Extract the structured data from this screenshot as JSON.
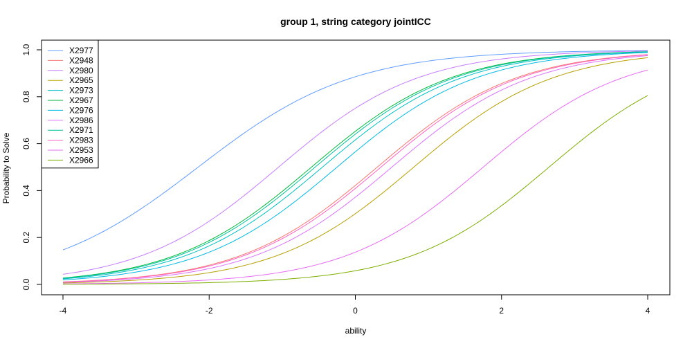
{
  "chart_data": {
    "type": "line",
    "title": "group 1, string category jointICC",
    "xlabel": "ability",
    "ylabel": "Probability to Solve",
    "xlim": [
      -4,
      4
    ],
    "ylim": [
      0,
      1
    ],
    "x_ticks": [
      -4,
      -2,
      0,
      2,
      4
    ],
    "y_ticks": [
      0.0,
      0.2,
      0.4,
      0.6,
      0.8,
      1.0
    ],
    "y_tick_labels": [
      "0.0",
      "0.2",
      "0.4",
      "0.6",
      "0.8",
      "1.0"
    ],
    "grid": false,
    "legend_position": "top-left",
    "series": [
      {
        "name": "X2977",
        "color": "#619CFF",
        "difficulty": -2.15,
        "discrimination": 0.95
      },
      {
        "name": "X2948",
        "color": "#F8766D",
        "difficulty": 0.3,
        "discrimination": 1.05
      },
      {
        "name": "X2980",
        "color": "#C77CFF",
        "difficulty": -1.05,
        "discrimination": 1.05
      },
      {
        "name": "X2965",
        "color": "#B79F00",
        "difficulty": 0.8,
        "discrimination": 1.05
      },
      {
        "name": "X2973",
        "color": "#00BFC4",
        "difficulty": -0.45,
        "discrimination": 1.05
      },
      {
        "name": "X2967",
        "color": "#00BA38",
        "difficulty": -0.6,
        "discrimination": 1.05
      },
      {
        "name": "X2976",
        "color": "#00B9E3",
        "difficulty": -0.25,
        "discrimination": 1.05
      },
      {
        "name": "X2986",
        "color": "#DB72FB",
        "difficulty": 0.5,
        "discrimination": 1.05
      },
      {
        "name": "X2971",
        "color": "#00C19F",
        "difficulty": -0.55,
        "discrimination": 1.05
      },
      {
        "name": "X2983",
        "color": "#FF61C3",
        "difficulty": 0.35,
        "discrimination": 1.05
      },
      {
        "name": "X2953",
        "color": "#E76BF3",
        "difficulty": 1.75,
        "discrimination": 1.05
      },
      {
        "name": "X2966",
        "color": "#7CAE00",
        "difficulty": 2.65,
        "discrimination": 1.05
      }
    ]
  }
}
